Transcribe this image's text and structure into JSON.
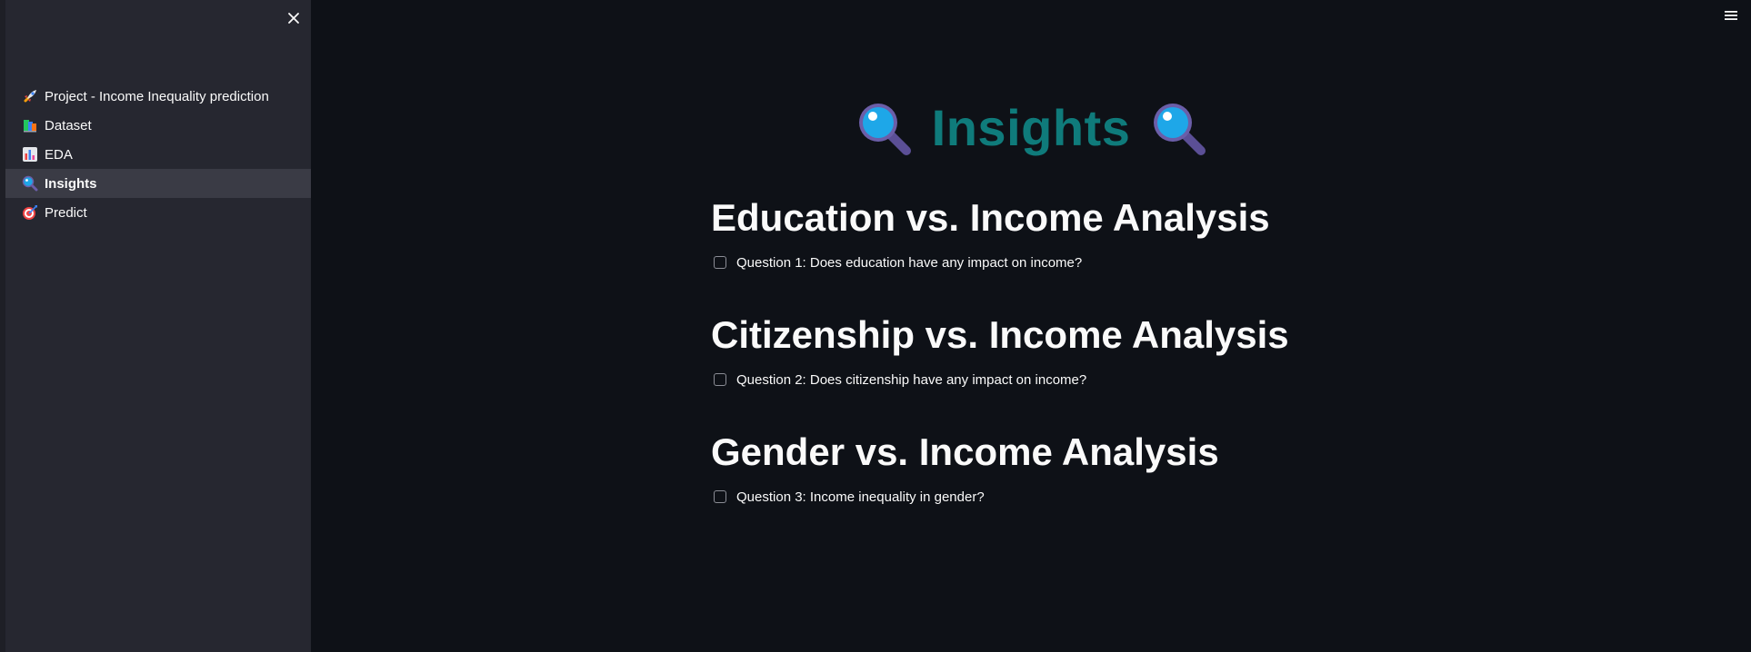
{
  "sidebar": {
    "items": [
      {
        "label": "Project - Income Inequality prediction",
        "icon": "rocket-icon"
      },
      {
        "label": "Dataset",
        "icon": "books-icon"
      },
      {
        "label": "EDA",
        "icon": "bar-chart-icon"
      },
      {
        "label": "Insights",
        "icon": "magnifying-glass-icon",
        "active": true
      },
      {
        "label": "Predict",
        "icon": "target-icon"
      }
    ]
  },
  "main": {
    "title": "Insights",
    "sections": [
      {
        "heading": "Education vs. Income Analysis",
        "question": "Question 1: Does education have any impact on income?"
      },
      {
        "heading": "Citizenship vs. Income Analysis",
        "question": "Question 2: Does citizenship have any impact on income?"
      },
      {
        "heading": "Gender vs. Income Analysis",
        "question": "Question 3: Income inequality in gender?"
      }
    ]
  },
  "colors": {
    "background": "#0e1117",
    "sidebar": "#262730",
    "title": "#0f7b7b",
    "text": "#fafafa"
  }
}
